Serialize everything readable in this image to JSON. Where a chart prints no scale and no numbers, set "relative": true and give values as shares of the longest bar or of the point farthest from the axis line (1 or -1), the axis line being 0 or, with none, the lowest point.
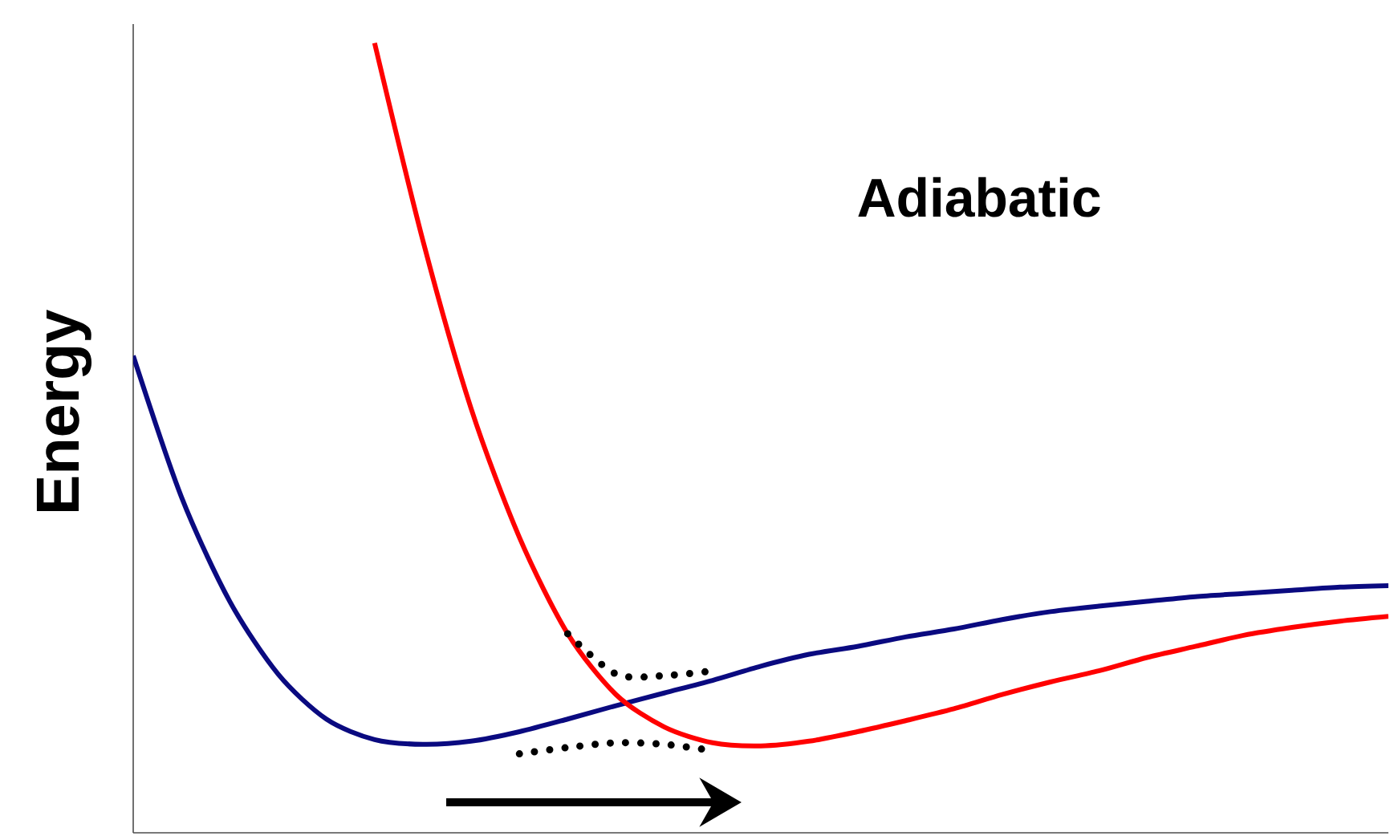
{
  "chart_data": {
    "type": "line",
    "relative": true,
    "ylabel": "Energy",
    "annotations": [
      "Adiabatic"
    ],
    "marker": "none",
    "categories": [
      null,
      null,
      null,
      null,
      null,
      null,
      null,
      null,
      null,
      null,
      null,
      null,
      null,
      null,
      null,
      null,
      null,
      null,
      null,
      null,
      null,
      null,
      null,
      null,
      null,
      null,
      null
    ],
    "series": [
      {
        "color": "#0a0a80",
        "line_style": "solid",
        "values": [
          0.604,
          0.425,
          0.293,
          0.201,
          0.144,
          0.118,
          0.112,
          0.116,
          0.128,
          0.144,
          0.161,
          0.177,
          0.193,
          0.211,
          0.226,
          0.236,
          0.248,
          0.258,
          0.27,
          0.28,
          0.287,
          0.293,
          0.299,
          0.303,
          0.307,
          0.311,
          0.313
        ]
      },
      {
        "color": "#ff0000",
        "line_style": "solid",
        "values": [
          null,
          null,
          null,
          null,
          null,
          1.0,
          0.75,
          0.537,
          0.374,
          0.252,
          0.175,
          0.134,
          0.114,
          0.11,
          0.116,
          0.128,
          0.142,
          0.157,
          0.175,
          0.191,
          0.205,
          0.222,
          0.236,
          0.25,
          0.26,
          0.268,
          0.274
        ]
      },
      {
        "color": "#000000",
        "line_style": "dotted",
        "values": [
          null,
          null,
          null,
          null,
          null,
          null,
          null,
          null,
          null,
          0.252,
          0.201,
          0.199,
          0.205,
          null,
          null,
          null,
          null,
          null,
          null,
          null,
          null,
          null,
          null,
          null,
          null,
          null,
          null
        ]
      },
      {
        "color": "#000000",
        "line_style": "dotted",
        "values": [
          null,
          null,
          null,
          null,
          null,
          null,
          null,
          null,
          0.1,
          0.108,
          0.114,
          0.112,
          0.104,
          null,
          null,
          null,
          null,
          null,
          null,
          null,
          null,
          null,
          null,
          null,
          null,
          null,
          null
        ]
      }
    ]
  }
}
